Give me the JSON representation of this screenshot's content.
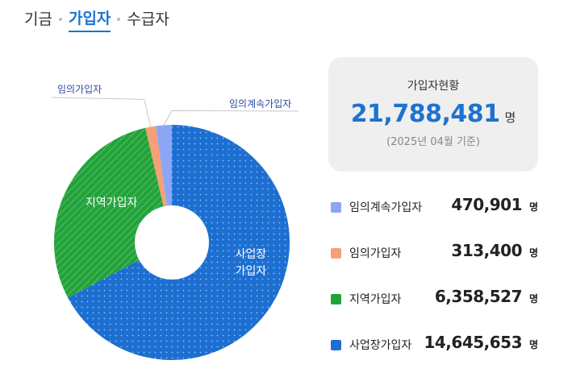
{
  "tabs": [
    {
      "label": "기금",
      "active": false
    },
    {
      "label": "가입자",
      "active": true
    },
    {
      "label": "수급자",
      "active": false
    }
  ],
  "summary": {
    "title": "가입자현황",
    "total": "21,788,481",
    "unit": "명",
    "date_note": "(2025년 04월 기준)"
  },
  "legend": [
    {
      "label": "임의계속가입자",
      "value": "470,901",
      "unit": "명",
      "color": "#8aa6f5"
    },
    {
      "label": "임의가입자",
      "value": "313,400",
      "unit": "명",
      "color": "#f5a077"
    },
    {
      "label": "지역가입자",
      "value": "6,358,527",
      "unit": "명",
      "color": "#22a33a"
    },
    {
      "label": "사업장가입자",
      "value": "14,645,653",
      "unit": "명",
      "color": "#1c6fd1"
    }
  ],
  "chart_data": {
    "type": "pie",
    "donut": true,
    "categories": [
      "임의계속가입자",
      "임의가입자",
      "지역가입자",
      "사업장가입자"
    ],
    "values": [
      470901,
      313400,
      6358527,
      14645653
    ],
    "colors": [
      "#8aa6f5",
      "#f5a077",
      "#22a33a",
      "#1c6fd1"
    ],
    "slice_labels": {
      "outside": [
        "임의계속가입자",
        "임의가입자"
      ],
      "inside_jiyeok": "지역가입자",
      "inside_saeop": [
        "사업장",
        "가입자"
      ]
    }
  }
}
